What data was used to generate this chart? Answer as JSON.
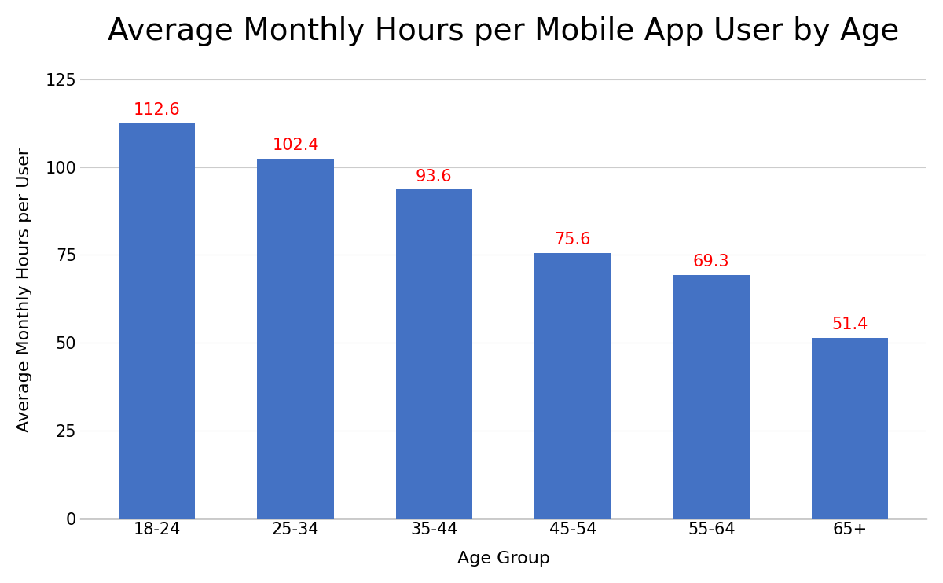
{
  "title": "Average Monthly Hours per Mobile App User by Age",
  "xlabel": "Age Group",
  "ylabel": "Average Monthly Hours per User",
  "categories": [
    "18-24",
    "25-34",
    "35-44",
    "45-54",
    "55-64",
    "65+"
  ],
  "values": [
    112.6,
    102.4,
    93.6,
    75.6,
    69.3,
    51.4
  ],
  "bar_color": "#4472C4",
  "label_color": "#FF0000",
  "background_color": "#FFFFFF",
  "ylim": [
    0,
    130
  ],
  "yticks": [
    0,
    25,
    50,
    75,
    100,
    125
  ],
  "title_fontsize": 28,
  "axis_label_fontsize": 16,
  "tick_label_fontsize": 15,
  "value_label_fontsize": 15,
  "bar_width": 0.55,
  "grid_color": "#CCCCCC",
  "grid_linewidth": 0.8
}
